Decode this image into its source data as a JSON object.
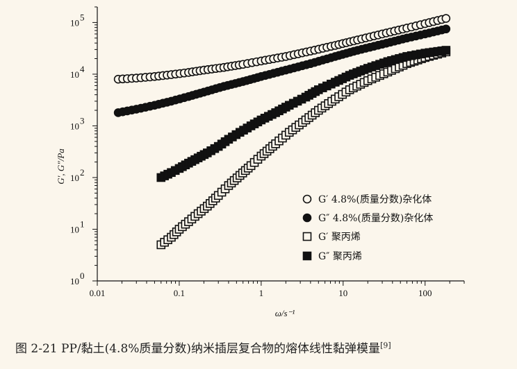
{
  "chart_data": {
    "type": "scatter",
    "xscale": "log",
    "yscale": "log",
    "xlim": [
      0.01,
      300
    ],
    "ylim": [
      1,
      200000
    ],
    "xlabel": "ω/s⁻¹",
    "ylabel": "G′, G″/Pa",
    "x_ticks": [
      {
        "value": 0.01,
        "label": "0.01"
      },
      {
        "value": 0.1,
        "label": "0.1"
      },
      {
        "value": 1,
        "label": "1"
      },
      {
        "value": 10,
        "label": "10"
      },
      {
        "value": 100,
        "label": "100"
      }
    ],
    "y_ticks": [
      {
        "value": 1,
        "label": "10",
        "exp": "0"
      },
      {
        "value": 10,
        "label": "10",
        "exp": "1"
      },
      {
        "value": 100,
        "label": "10",
        "exp": "2"
      },
      {
        "value": 1000,
        "label": "10",
        "exp": "3"
      },
      {
        "value": 10000,
        "label": "10",
        "exp": "4"
      },
      {
        "value": 100000,
        "label": "10",
        "exp": "5"
      }
    ],
    "legend_position": "bottom-right",
    "series": [
      {
        "name": "G′ 4.8%(质量分数)杂化体",
        "marker": "circle-open",
        "x": [
          0.018,
          0.03,
          0.05,
          0.08,
          0.13,
          0.2,
          0.35,
          0.6,
          1,
          2,
          4,
          8,
          15,
          30,
          60,
          100,
          180
        ],
        "y": [
          8000,
          8400,
          9000,
          9800,
          10800,
          12000,
          13500,
          15500,
          18000,
          22000,
          28000,
          36000,
          46000,
          60000,
          78000,
          95000,
          120000
        ]
      },
      {
        "name": "G″ 4.8%(质量分数)杂化体",
        "marker": "circle-filled",
        "x": [
          0.018,
          0.03,
          0.05,
          0.08,
          0.13,
          0.2,
          0.35,
          0.6,
          1,
          2,
          4,
          8,
          15,
          30,
          60,
          100,
          180
        ],
        "y": [
          1800,
          2100,
          2500,
          3000,
          3700,
          4500,
          5800,
          7200,
          9000,
          12000,
          16000,
          22000,
          29000,
          38000,
          50000,
          60000,
          75000
        ]
      },
      {
        "name": "G′ 聚丙烯",
        "marker": "square-open",
        "x": [
          0.06,
          0.08,
          0.1,
          0.13,
          0.17,
          0.22,
          0.3,
          0.4,
          0.55,
          0.75,
          1,
          1.5,
          2.2,
          3.5,
          5,
          8,
          12,
          20,
          35,
          60,
          100,
          180
        ],
        "y": [
          5,
          7,
          10,
          14,
          20,
          28,
          45,
          70,
          110,
          170,
          260,
          450,
          750,
          1300,
          2000,
          3300,
          5000,
          7500,
          11000,
          16000,
          21000,
          27000
        ]
      },
      {
        "name": "G″ 聚丙烯",
        "marker": "square-filled",
        "x": [
          0.06,
          0.08,
          0.1,
          0.13,
          0.17,
          0.22,
          0.3,
          0.4,
          0.55,
          0.75,
          1,
          1.5,
          2.2,
          3.5,
          5,
          8,
          12,
          20,
          35,
          60,
          100,
          180
        ],
        "y": [
          100,
          125,
          150,
          190,
          240,
          300,
          400,
          550,
          750,
          1000,
          1300,
          1800,
          2500,
          3600,
          5000,
          7000,
          9500,
          13000,
          17500,
          22000,
          25500,
          29000
        ]
      }
    ]
  },
  "caption": {
    "text": "图 2-21    PP/黏土(4.8%质量分数)纳米插层复合物的熔体线性黏弹模量",
    "ref": "[9]"
  },
  "colors": {
    "background": "#fbf6ec",
    "ink": "#111111"
  }
}
